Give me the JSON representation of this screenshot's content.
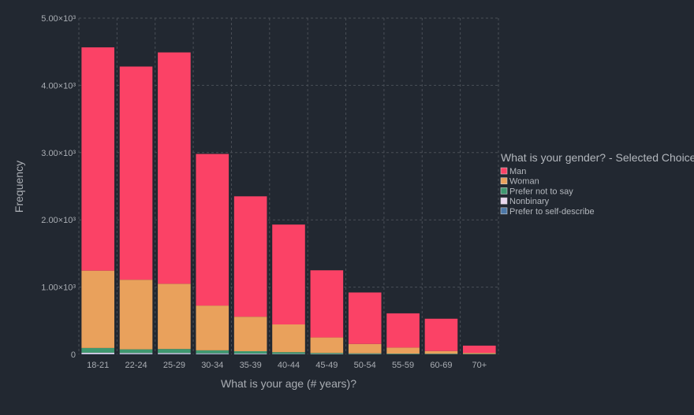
{
  "chart_data": {
    "type": "bar",
    "stacked": true,
    "title": "",
    "xlabel": "What is your age (# years)?",
    "ylabel": "Frequency",
    "ylim": [
      0,
      5000
    ],
    "yticks": [
      0,
      1000,
      2000,
      3000,
      4000,
      5000
    ],
    "ytick_labels": [
      "0",
      "1.00×10³",
      "2.00×10³",
      "3.00×10³",
      "4.00×10³",
      "5.00×10³"
    ],
    "grid": true,
    "categories": [
      "18-21",
      "22-24",
      "25-29",
      "30-34",
      "35-39",
      "40-44",
      "45-49",
      "50-54",
      "55-59",
      "60-69",
      "70+"
    ],
    "series": [
      {
        "name": "Prefer to self-describe",
        "color": "#4c78a8",
        "values": [
          5,
          5,
          5,
          5,
          4,
          3,
          2,
          2,
          1,
          1,
          1
        ]
      },
      {
        "name": "Nonbinary",
        "color": "#e9d8ef",
        "values": [
          20,
          15,
          15,
          10,
          8,
          5,
          4,
          3,
          2,
          2,
          1
        ]
      },
      {
        "name": "Prefer not to say",
        "color": "#3f9870",
        "values": [
          70,
          55,
          60,
          45,
          35,
          25,
          15,
          10,
          8,
          7,
          5
        ]
      },
      {
        "name": "Woman",
        "color": "#e9a15c",
        "values": [
          1150,
          1035,
          970,
          665,
          513,
          412,
          230,
          140,
          90,
          40,
          15
        ]
      },
      {
        "name": "Man",
        "color": "#fb4266",
        "values": [
          3320,
          3170,
          3440,
          2255,
          1790,
          1485,
          999,
          765,
          509,
          480,
          108
        ]
      }
    ],
    "legend": {
      "title": "What is your gender? - Selected Choice",
      "position": "right",
      "entries": [
        {
          "name": "Man",
          "color": "#fb4266"
        },
        {
          "name": "Woman",
          "color": "#e9a15c"
        },
        {
          "name": "Prefer not to say",
          "color": "#3f9870"
        },
        {
          "name": "Nonbinary",
          "color": "#e9d8ef"
        },
        {
          "name": "Prefer to self-describe",
          "color": "#4c78a8"
        }
      ]
    }
  }
}
